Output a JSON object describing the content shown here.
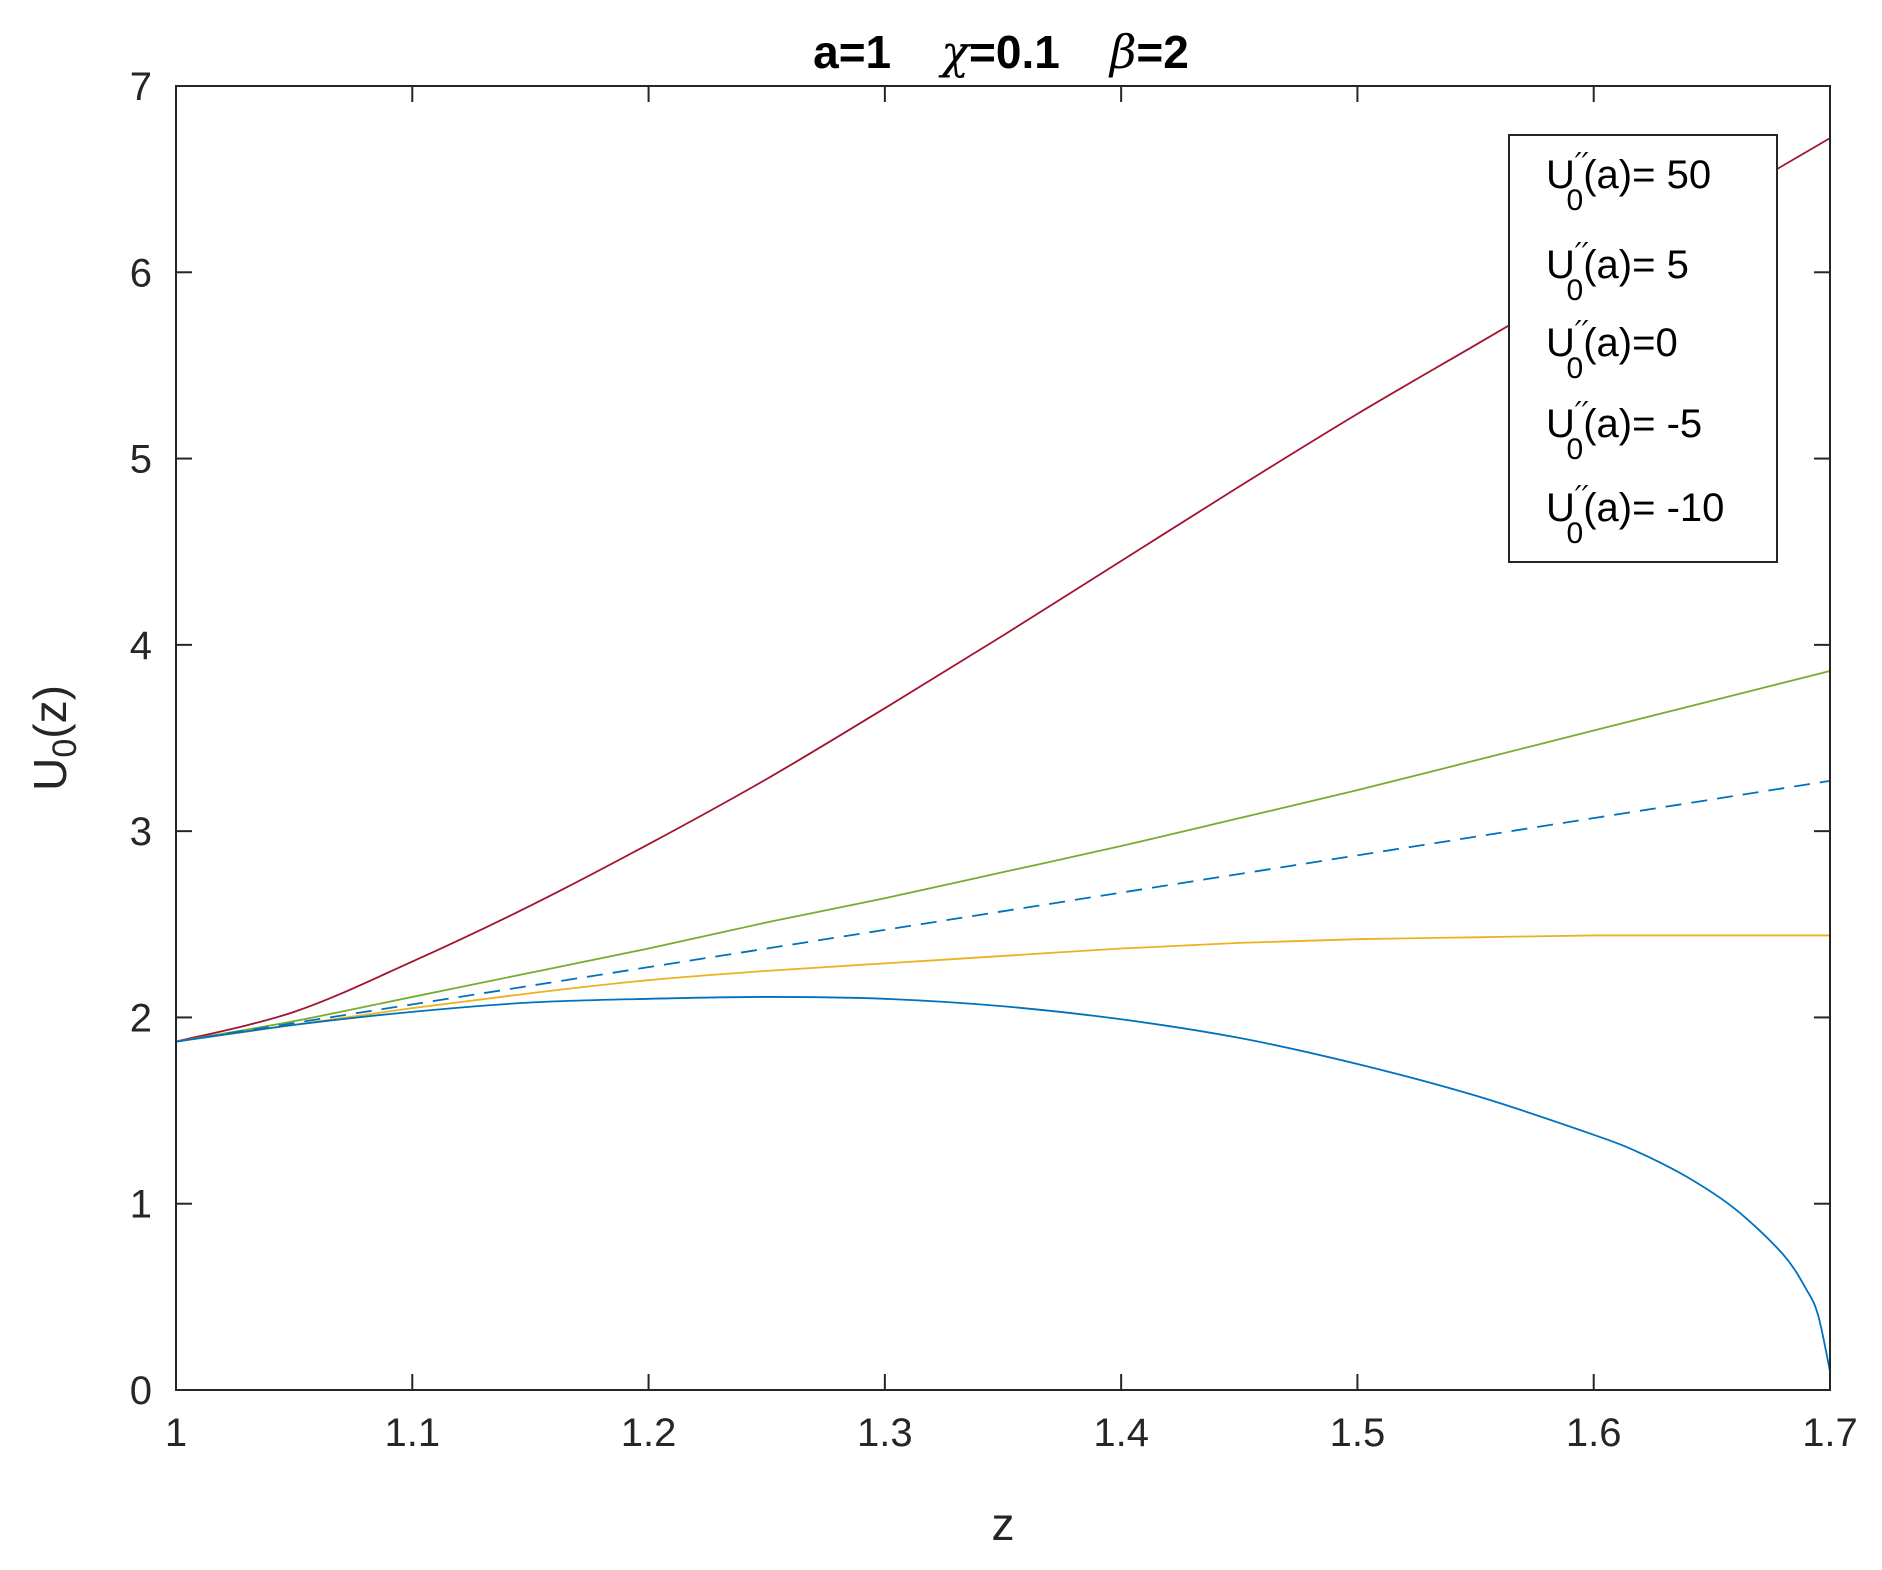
{
  "chart_data": {
    "type": "line",
    "title": {
      "a": "a=1",
      "chi_symbol": "χ",
      "chi_value": "=0.1",
      "beta_symbol": "β",
      "beta_value": "=2"
    },
    "xlabel": "z",
    "ylabel": {
      "main": "U",
      "sub": "0",
      "tail": "(z)"
    },
    "xlim": [
      1,
      1.7
    ],
    "ylim": [
      0,
      7
    ],
    "xticks": [
      1,
      1.1,
      1.2,
      1.3,
      1.4,
      1.5,
      1.6,
      1.7
    ],
    "xtick_labels": [
      "1",
      "1.1",
      "1.2",
      "1.3",
      "1.4",
      "1.5",
      "1.6",
      "1.7"
    ],
    "yticks": [
      0,
      1,
      2,
      3,
      4,
      5,
      6,
      7
    ],
    "ytick_labels": [
      "0",
      "1",
      "2",
      "3",
      "4",
      "5",
      "6",
      "7"
    ],
    "grid": false,
    "legend_position": "top-right",
    "legend_prefix": {
      "main": "U",
      "primes": "′′",
      "sub": "0",
      "arg": "(a)"
    },
    "series": [
      {
        "name": "U′′0(a)= 50",
        "label_suffix": "= 50",
        "color": "#A2142F",
        "dash": "solid",
        "x": [
          1,
          1.05,
          1.1,
          1.15,
          1.2,
          1.25,
          1.3,
          1.35,
          1.4,
          1.45,
          1.5,
          1.55,
          1.6,
          1.65,
          1.7
        ],
        "y": [
          1.87,
          2.03,
          2.3,
          2.6,
          2.93,
          3.28,
          3.66,
          4.05,
          4.45,
          4.85,
          5.24,
          5.61,
          5.98,
          6.35,
          6.72
        ]
      },
      {
        "name": "U′′0(a)= 5",
        "label_suffix": "= 5",
        "color": "#77AC30",
        "dash": "solid",
        "x": [
          1,
          1.05,
          1.1,
          1.15,
          1.2,
          1.25,
          1.3,
          1.35,
          1.4,
          1.45,
          1.5,
          1.55,
          1.6,
          1.65,
          1.7
        ],
        "y": [
          1.87,
          1.98,
          2.11,
          2.24,
          2.37,
          2.51,
          2.64,
          2.78,
          2.92,
          3.07,
          3.22,
          3.38,
          3.54,
          3.7,
          3.86
        ]
      },
      {
        "name": "U′′0(a)=0",
        "label_suffix": "=0",
        "color": "#0072BD",
        "dash": "dashed",
        "x": [
          1,
          1.1,
          1.2,
          1.3,
          1.4,
          1.5,
          1.6,
          1.7
        ],
        "y": [
          1.87,
          2.07,
          2.27,
          2.47,
          2.67,
          2.87,
          3.07,
          3.27
        ]
      },
      {
        "name": "U′′0(a)= -5",
        "label_suffix": "= -5",
        "color": "#EDB120",
        "dash": "solid",
        "x": [
          1,
          1.05,
          1.1,
          1.15,
          1.2,
          1.25,
          1.3,
          1.35,
          1.4,
          1.45,
          1.5,
          1.55,
          1.6,
          1.65,
          1.7
        ],
        "y": [
          1.87,
          1.96,
          2.05,
          2.13,
          2.2,
          2.25,
          2.29,
          2.33,
          2.37,
          2.4,
          2.42,
          2.43,
          2.44,
          2.44,
          2.44
        ]
      },
      {
        "name": "U′′0(a)= -10",
        "label_suffix": "= -10",
        "color": "#0072BD",
        "dash": "solid",
        "x": [
          1,
          1.05,
          1.1,
          1.15,
          1.2,
          1.25,
          1.3,
          1.35,
          1.4,
          1.45,
          1.5,
          1.55,
          1.6,
          1.62,
          1.64,
          1.66,
          1.68,
          1.69,
          1.695,
          1.7
        ],
        "y": [
          1.87,
          1.96,
          2.03,
          2.08,
          2.1,
          2.11,
          2.1,
          2.06,
          1.99,
          1.89,
          1.75,
          1.58,
          1.37,
          1.27,
          1.14,
          0.97,
          0.73,
          0.54,
          0.4,
          0.1
        ]
      }
    ]
  }
}
